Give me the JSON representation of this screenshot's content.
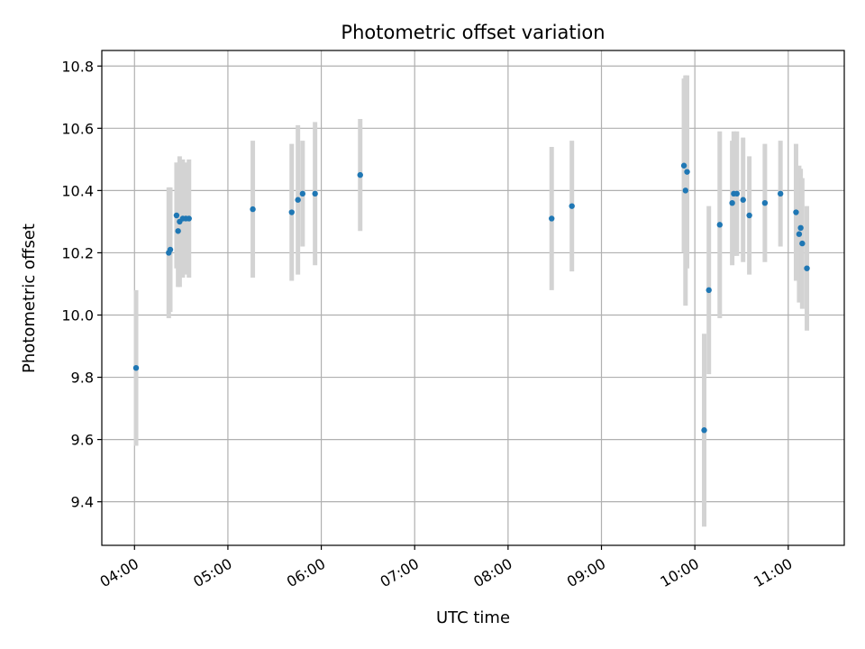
{
  "chart_data": {
    "type": "scatter",
    "title": "Photometric offset variation",
    "xlabel": "UTC time",
    "ylabel": "Photometric offset",
    "x_unit": "UTC time (HH:MM)",
    "xlim": [
      "03:39",
      "11:36"
    ],
    "ylim": [
      9.26,
      10.85
    ],
    "x_ticks": [
      "04:00",
      "05:00",
      "06:00",
      "07:00",
      "08:00",
      "09:00",
      "10:00",
      "11:00"
    ],
    "y_ticks": [
      9.4,
      9.6,
      9.8,
      10.0,
      10.2,
      10.4,
      10.6,
      10.8
    ],
    "y_tick_labels": [
      "9.4",
      "9.6",
      "9.8",
      "10.0",
      "10.2",
      "10.4",
      "10.6",
      "10.8"
    ],
    "grid": true,
    "colors": {
      "point": "#1f77b4",
      "errorbar": "#d3d3d3",
      "grid": "#b0b0b0"
    },
    "points": [
      {
        "t": "04:01",
        "y": 9.83,
        "err": 0.25
      },
      {
        "t": "04:22",
        "y": 10.2,
        "err": 0.21
      },
      {
        "t": "04:23",
        "y": 10.21,
        "err": 0.2
      },
      {
        "t": "04:27",
        "y": 10.32,
        "err": 0.17
      },
      {
        "t": "04:28",
        "y": 10.27,
        "err": 0.18
      },
      {
        "t": "04:29",
        "y": 10.3,
        "err": 0.21
      },
      {
        "t": "04:31",
        "y": 10.31,
        "err": 0.19
      },
      {
        "t": "04:33",
        "y": 10.31,
        "err": 0.18
      },
      {
        "t": "04:35",
        "y": 10.31,
        "err": 0.19
      },
      {
        "t": "05:16",
        "y": 10.34,
        "err": 0.22
      },
      {
        "t": "05:41",
        "y": 10.33,
        "err": 0.22
      },
      {
        "t": "05:45",
        "y": 10.37,
        "err": 0.24
      },
      {
        "t": "05:48",
        "y": 10.39,
        "err": 0.17
      },
      {
        "t": "05:56",
        "y": 10.39,
        "err": 0.23
      },
      {
        "t": "06:25",
        "y": 10.45,
        "err": 0.18
      },
      {
        "t": "08:28",
        "y": 10.31,
        "err": 0.23
      },
      {
        "t": "08:41",
        "y": 10.35,
        "err": 0.21
      },
      {
        "t": "09:53",
        "y": 10.48,
        "err": 0.28
      },
      {
        "t": "09:54",
        "y": 10.4,
        "err": 0.37
      },
      {
        "t": "09:55",
        "y": 10.46,
        "err": 0.31
      },
      {
        "t": "10:06",
        "y": 9.63,
        "err": 0.31
      },
      {
        "t": "10:09",
        "y": 10.08,
        "err": 0.27
      },
      {
        "t": "10:16",
        "y": 10.29,
        "err": 0.3
      },
      {
        "t": "10:24",
        "y": 10.36,
        "err": 0.2
      },
      {
        "t": "10:25",
        "y": 10.39,
        "err": 0.2
      },
      {
        "t": "10:27",
        "y": 10.39,
        "err": 0.2
      },
      {
        "t": "10:31",
        "y": 10.37,
        "err": 0.2
      },
      {
        "t": "10:35",
        "y": 10.32,
        "err": 0.19
      },
      {
        "t": "10:45",
        "y": 10.36,
        "err": 0.19
      },
      {
        "t": "10:55",
        "y": 10.39,
        "err": 0.17
      },
      {
        "t": "11:05",
        "y": 10.33,
        "err": 0.22
      },
      {
        "t": "11:07",
        "y": 10.26,
        "err": 0.22
      },
      {
        "t": "11:08",
        "y": 10.28,
        "err": 0.19
      },
      {
        "t": "11:09",
        "y": 10.23,
        "err": 0.21
      },
      {
        "t": "11:12",
        "y": 10.15,
        "err": 0.2
      }
    ]
  }
}
